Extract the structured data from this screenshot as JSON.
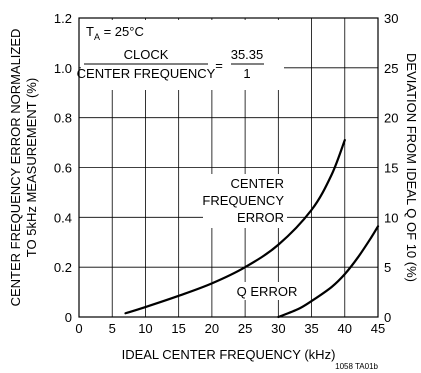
{
  "chart_data": {
    "type": "line",
    "xlabel": "IDEAL CENTER FREQUENCY (kHz)",
    "ylabel_left_lines": [
      "CENTER FREQUENCY ERROR NORMALIZED",
      "TO 5kHz MEASUREMENT (%)"
    ],
    "ylabel_right": "DEVIATION FROM IDEAL Q OF 10 (%)",
    "xlim": [
      0,
      45
    ],
    "ylim_left": [
      0,
      1.2
    ],
    "ylim_right": [
      0,
      30
    ],
    "x_ticks": [
      0,
      5,
      10,
      15,
      20,
      25,
      30,
      35,
      40,
      45
    ],
    "x_tick_labels": [
      "0",
      "5",
      "10",
      "15",
      "20",
      "25",
      "30",
      "35",
      "40",
      "45"
    ],
    "y_left_ticks": [
      0,
      0.2,
      0.4,
      0.6,
      0.8,
      1.0,
      1.2
    ],
    "y_left_tick_labels": [
      "0",
      "0.2",
      "0.4",
      "0.6",
      "0.8",
      "1.0",
      "1.2"
    ],
    "y_right_ticks": [
      0,
      5,
      10,
      15,
      20,
      25,
      30
    ],
    "y_right_tick_labels": [
      "0",
      "5",
      "10",
      "15",
      "20",
      "25",
      "30"
    ],
    "grid": true,
    "series": [
      {
        "name": "CENTER FREQUENCY ERROR",
        "axis": "left",
        "x": [
          7,
          10,
          15,
          20,
          25,
          30,
          35,
          38,
          40
        ],
        "y": [
          0.015,
          0.04,
          0.085,
          0.135,
          0.2,
          0.29,
          0.43,
          0.57,
          0.71
        ],
        "color": "#000000"
      },
      {
        "name": "Q ERROR",
        "axis": "right",
        "x": [
          30,
          33,
          35,
          38,
          40,
          42,
          44,
          45
        ],
        "y": [
          0,
          0.8,
          1.6,
          3.0,
          4.3,
          6.0,
          8.0,
          9.1
        ],
        "color": "#000000"
      }
    ],
    "annotations": {
      "temp_prefix": "T",
      "temp_sub": "A",
      "temp_rest": " = 25°C",
      "ratio_numerator": "CLOCK",
      "ratio_denominator": "CENTER FREQUENCY",
      "ratio_equals": "=",
      "ratio_value_numerator": "35.35",
      "ratio_value_denominator": "1",
      "cf_label_lines": [
        "CENTER",
        "FREQUENCY",
        "ERROR"
      ],
      "q_label": "Q ERROR"
    },
    "figure_id": "1058 TA01b"
  }
}
